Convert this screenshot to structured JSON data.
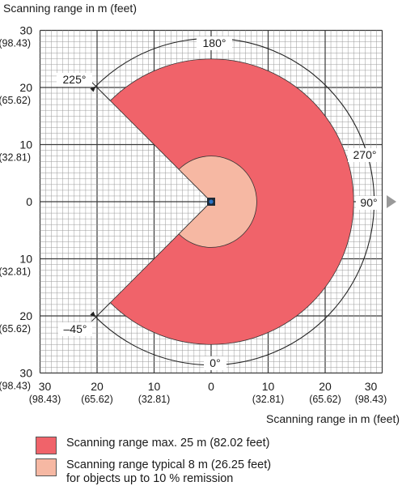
{
  "title_y": "Scanning range in m (feet)",
  "title_x": "Scanning range in m (feet)",
  "colors": {
    "max": "#f0636a",
    "typical": "#f6b8a3",
    "grid": "#9a9a9a",
    "arc": "#222222"
  },
  "y_ticks": [
    {
      "value": 30,
      "m": "30",
      "ft": "(98.43)"
    },
    {
      "value": 20,
      "m": "20",
      "ft": "(65.62)"
    },
    {
      "value": 10,
      "m": "10",
      "ft": "(32.81)"
    },
    {
      "value": 0,
      "m": "0",
      "ft": ""
    },
    {
      "value": -10,
      "m": "10",
      "ft": "(32.81)"
    },
    {
      "value": -20,
      "m": "20",
      "ft": "(65.62)"
    },
    {
      "value": -30,
      "m": "30",
      "ft": "(98.43)"
    }
  ],
  "x_ticks": [
    {
      "value": -30,
      "m": "30",
      "ft": "(98.43)"
    },
    {
      "value": -20,
      "m": "20",
      "ft": "(65.62)"
    },
    {
      "value": -10,
      "m": "10",
      "ft": "(32.81)"
    },
    {
      "value": 0,
      "m": "0",
      "ft": ""
    },
    {
      "value": 10,
      "m": "10",
      "ft": "(32.81)"
    },
    {
      "value": 20,
      "m": "20",
      "ft": "(65.62)"
    },
    {
      "value": 30,
      "m": "30",
      "ft": "(98.43)"
    }
  ],
  "angles": {
    "a180": "180°",
    "a225": "225°",
    "a270": "270°",
    "a90": "90°",
    "am45": "–45°",
    "a0": "0°"
  },
  "legend": {
    "max_label": "Scanning range max. 25 m (82.02 feet)",
    "typical_line1": "Scanning range typical 8 m (26.25 feet)",
    "typical_line2": "for objects up to 10 % remission"
  },
  "chart_data": {
    "type": "polar-sector",
    "max_range_m": 25,
    "typical_range_m": 8,
    "scan_angle_start_deg": -45,
    "scan_angle_end_deg": 225,
    "axis_range_m": [
      -30,
      30
    ]
  }
}
